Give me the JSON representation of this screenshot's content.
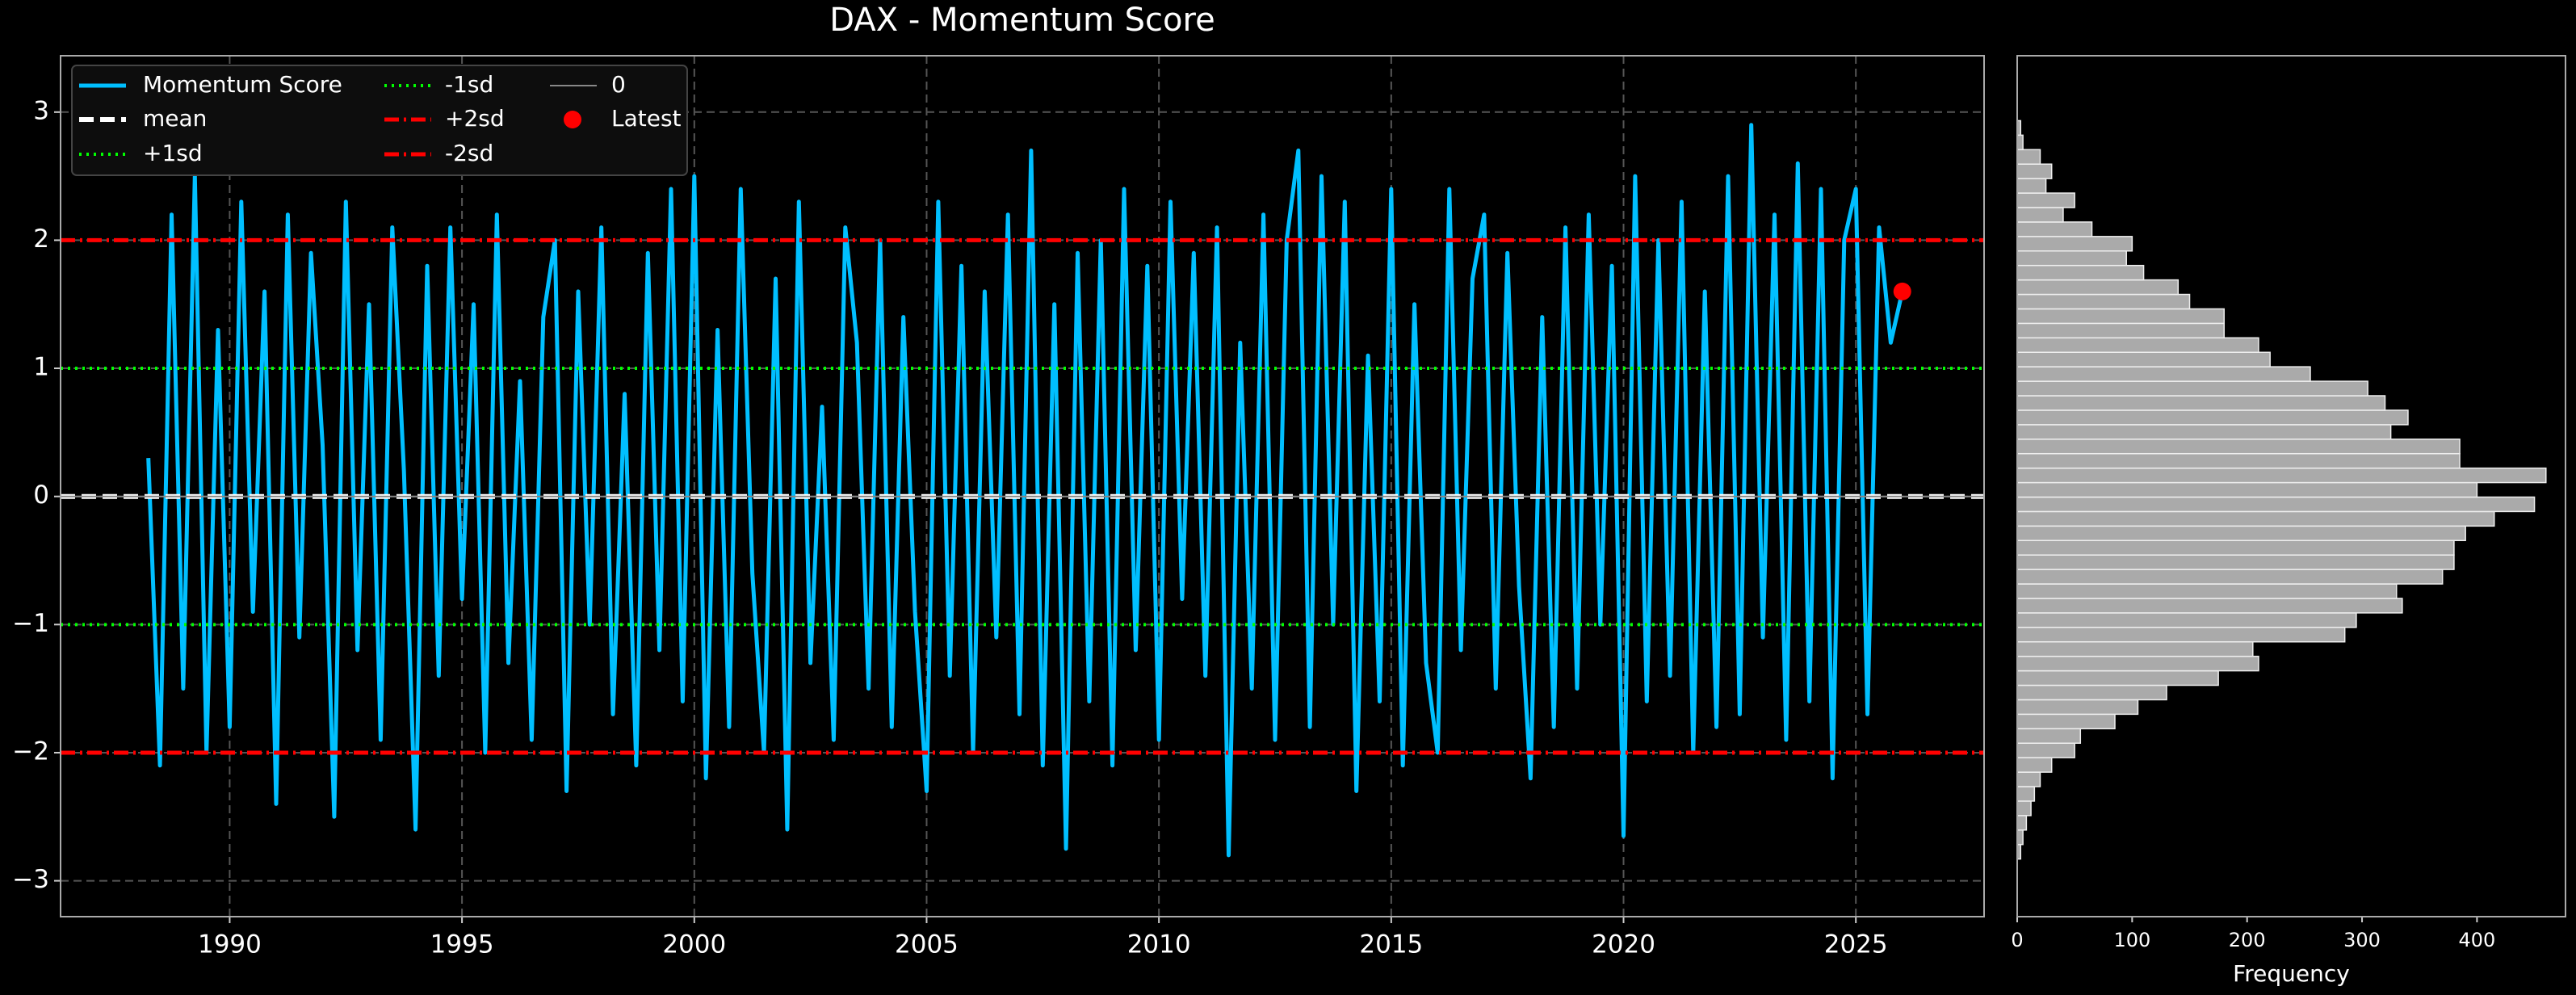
{
  "chart_data": [
    {
      "type": "line",
      "title": "DAX - Momentum Score",
      "x": [
        1988.25,
        1988.5,
        1988.75,
        1989,
        1989.25,
        1989.5,
        1989.75,
        1990,
        1990.25,
        1990.5,
        1990.75,
        1991,
        1991.25,
        1991.5,
        1991.75,
        1992,
        1992.25,
        1992.5,
        1992.75,
        1993,
        1993.25,
        1993.5,
        1993.75,
        1994,
        1994.25,
        1994.5,
        1994.75,
        1995,
        1995.25,
        1995.5,
        1995.75,
        1996,
        1996.25,
        1996.5,
        1996.75,
        1997,
        1997.25,
        1997.5,
        1997.75,
        1998,
        1998.25,
        1998.5,
        1998.75,
        1999,
        1999.25,
        1999.5,
        1999.75,
        2000,
        2000.25,
        2000.5,
        2000.75,
        2001,
        2001.25,
        2001.5,
        2001.75,
        2002,
        2002.25,
        2002.5,
        2002.75,
        2003,
        2003.25,
        2003.5,
        2003.75,
        2004,
        2004.25,
        2004.5,
        2004.75,
        2005,
        2005.25,
        2005.5,
        2005.75,
        2006,
        2006.25,
        2006.5,
        2006.75,
        2007,
        2007.25,
        2007.5,
        2007.75,
        2008,
        2008.25,
        2008.5,
        2008.75,
        2009,
        2009.25,
        2009.5,
        2009.75,
        2010,
        2010.25,
        2010.5,
        2010.75,
        2011,
        2011.25,
        2011.5,
        2011.75,
        2012,
        2012.25,
        2012.5,
        2012.75,
        2013,
        2013.25,
        2013.5,
        2013.75,
        2014,
        2014.25,
        2014.5,
        2014.75,
        2015,
        2015.25,
        2015.5,
        2015.75,
        2016,
        2016.25,
        2016.5,
        2016.75,
        2017,
        2017.25,
        2017.5,
        2017.75,
        2018,
        2018.25,
        2018.5,
        2018.75,
        2019,
        2019.25,
        2019.5,
        2019.75,
        2020,
        2020.25,
        2020.5,
        2020.75,
        2021,
        2021.25,
        2021.5,
        2021.75,
        2022,
        2022.25,
        2022.5,
        2022.75,
        2023,
        2023.25,
        2023.5,
        2023.75,
        2024,
        2024.25,
        2024.5,
        2024.75,
        2025,
        2025.25,
        2025.5,
        2025.75,
        2026
      ],
      "series": [
        {
          "name": "Momentum Score",
          "color": "#00bfff",
          "values": [
            0.3,
            -2.1,
            2.2,
            -1.5,
            2.5,
            -2.0,
            1.3,
            -1.8,
            2.3,
            -0.9,
            1.6,
            -2.4,
            2.2,
            -1.1,
            1.9,
            0.4,
            -2.5,
            2.3,
            -1.2,
            1.5,
            -1.9,
            2.1,
            0.2,
            -2.6,
            1.8,
            -1.4,
            2.1,
            -0.8,
            1.5,
            -2.0,
            2.2,
            -1.3,
            0.9,
            -1.9,
            1.4,
            2.0,
            -2.3,
            1.6,
            -1.0,
            2.1,
            -1.7,
            0.8,
            -2.1,
            1.9,
            -1.2,
            2.4,
            -1.6,
            2.5,
            -2.2,
            1.3,
            -1.8,
            2.4,
            -0.6,
            -2.0,
            1.7,
            -2.6,
            2.3,
            -1.3,
            0.7,
            -1.9,
            2.1,
            1.2,
            -1.5,
            2.0,
            -1.8,
            1.4,
            -0.9,
            -2.3,
            2.3,
            -1.4,
            1.8,
            -2.0,
            1.6,
            -1.1,
            2.2,
            -1.7,
            2.7,
            -2.1,
            1.5,
            -2.75,
            1.9,
            -1.6,
            2.0,
            -2.1,
            2.4,
            -1.2,
            1.8,
            -1.9,
            2.3,
            -0.8,
            1.9,
            -1.4,
            2.1,
            -2.8,
            1.2,
            -1.5,
            2.2,
            -1.9,
            2.0,
            2.7,
            -1.8,
            2.5,
            -1.0,
            2.3,
            -2.3,
            1.1,
            -1.6,
            2.4,
            -2.1,
            1.5,
            -1.3,
            -2.0,
            2.4,
            -1.2,
            1.7,
            2.2,
            -1.5,
            1.9,
            -0.7,
            -2.2,
            1.4,
            -1.8,
            2.1,
            -1.5,
            2.2,
            -1.0,
            1.8,
            -2.65,
            2.5,
            -1.6,
            2.0,
            -1.4,
            2.3,
            -2.0,
            1.6,
            -1.8,
            2.5,
            -1.7,
            2.9,
            -1.1,
            2.2,
            -1.9,
            2.6,
            -1.6,
            2.4,
            -2.2,
            2.0,
            2.4,
            -1.7,
            2.1,
            1.2,
            1.6
          ]
        }
      ],
      "hlines": [
        {
          "name": "mean",
          "value": 0,
          "color": "#ffffff",
          "style": "dashed"
        },
        {
          "name": "+1sd",
          "value": 1,
          "color": "#00ff00",
          "style": "dotted"
        },
        {
          "name": "-1sd",
          "value": -1,
          "color": "#00ff00",
          "style": "dotted"
        },
        {
          "name": "+2sd",
          "value": 2,
          "color": "#ff0000",
          "style": "dashdot"
        },
        {
          "name": "-2sd",
          "value": -2,
          "color": "#ff0000",
          "style": "dashdot"
        },
        {
          "name": "0",
          "value": 0,
          "color": "#888888",
          "style": "solid"
        }
      ],
      "latest": {
        "name": "Latest",
        "x": 2026,
        "y": 1.6,
        "color": "#ff0000"
      },
      "xlim": [
        1986.36,
        2027.76
      ],
      "xticks": [
        1990,
        1995,
        2000,
        2005,
        2010,
        2015,
        2020,
        2025
      ],
      "ylim": [
        -3.28,
        3.44
      ],
      "yticks": [
        {
          "value": -3,
          "label": "−3"
        },
        {
          "value": -2,
          "label": "−2"
        },
        {
          "value": -1,
          "label": "−1"
        },
        0,
        1,
        2,
        3
      ],
      "grid": true,
      "legend": "upper left"
    },
    {
      "type": "histogram",
      "xlabel": "Frequency",
      "color": "#aaaaaa",
      "bins": [
        -2.83,
        -2.717,
        -2.604,
        -2.491,
        -2.378,
        -2.265,
        -2.152,
        -2.039,
        -1.926,
        -1.813,
        -1.7,
        -1.587,
        -1.474,
        -1.361,
        -1.248,
        -1.135,
        -1.022,
        -0.909,
        -0.796,
        -0.683,
        -0.57,
        -0.457,
        -0.344,
        -0.231,
        -0.118,
        -0.005,
        0.108,
        0.221,
        0.334,
        0.447,
        0.56,
        0.673,
        0.786,
        0.899,
        1.012,
        1.125,
        1.238,
        1.351,
        1.464,
        1.577,
        1.69,
        1.803,
        1.916,
        2.029,
        2.142,
        2.255,
        2.368,
        2.481,
        2.594,
        2.707,
        2.82,
        2.933
      ],
      "values": [
        3,
        5,
        8,
        12,
        15,
        20,
        30,
        50,
        55,
        85,
        105,
        130,
        175,
        210,
        205,
        285,
        295,
        335,
        330,
        370,
        380,
        380,
        390,
        415,
        450,
        400,
        460,
        385,
        385,
        325,
        340,
        320,
        305,
        255,
        220,
        210,
        180,
        180,
        150,
        140,
        110,
        95,
        100,
        65,
        40,
        50,
        25,
        30,
        20,
        5,
        3
      ],
      "xlim": [
        0,
        477
      ],
      "xticks": [
        0,
        100,
        200,
        300,
        400
      ],
      "ylim": [
        -3.28,
        3.44
      ]
    }
  ]
}
